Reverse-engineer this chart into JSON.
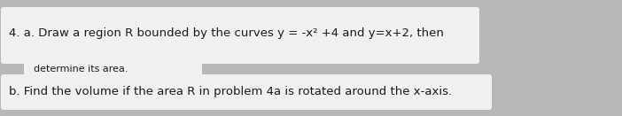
{
  "line1": "4. a. Draw a region R bounded by the curves y = -x² +4 and y=x+2, then",
  "line2": "determine its area.",
  "line3": "b. Find the volume if the area R in problem 4a is rotated around the x-axis.",
  "bg_color": "#b8b8b8",
  "box_color": "#f0f0f0",
  "text_color": "#1a1a1a",
  "font_size_main": 9.5,
  "font_size_sub": 8.0
}
